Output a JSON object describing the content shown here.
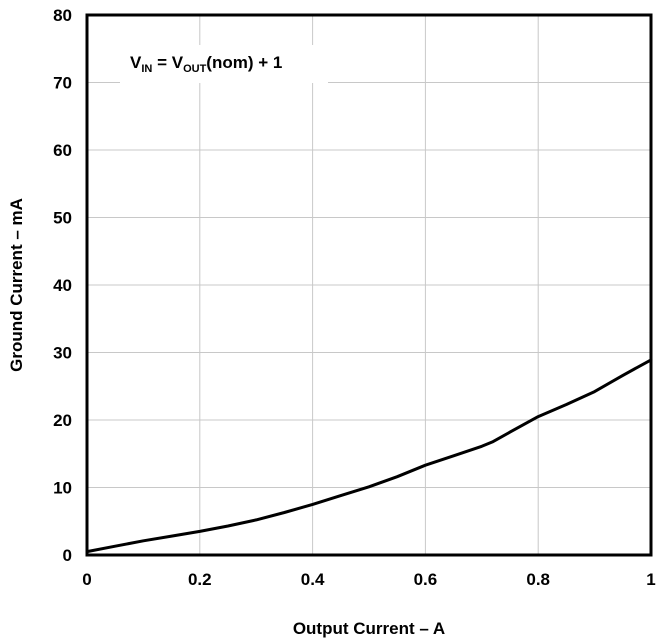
{
  "chart_data": {
    "type": "line",
    "title": "",
    "xlabel": "Output Current – A",
    "ylabel": "Ground Current – mA",
    "xlim": [
      0,
      1
    ],
    "ylim": [
      0,
      80
    ],
    "x_ticks": [
      0,
      0.2,
      0.4,
      0.6,
      0.8,
      1
    ],
    "x_tick_labels": [
      "0",
      "0.2",
      "0.4",
      "0.6",
      "0.8",
      "1"
    ],
    "y_ticks": [
      0,
      10,
      20,
      30,
      40,
      50,
      60,
      70,
      80
    ],
    "y_tick_labels": [
      "0",
      "10",
      "20",
      "30",
      "40",
      "50",
      "60",
      "70",
      "80"
    ],
    "grid": true,
    "legend": "none",
    "line_color": "#000000",
    "grid_color": "#c8c8c8",
    "annotation": {
      "v1": "V",
      "sub1": "IN",
      "mid": " = V",
      "sub2": "OUT",
      "tail": "(nom) + 1"
    },
    "series": [
      {
        "x": [
          0,
          0.05,
          0.1,
          0.15,
          0.2,
          0.25,
          0.3,
          0.35,
          0.4,
          0.45,
          0.5,
          0.55,
          0.6,
          0.65,
          0.7,
          0.72,
          0.75,
          0.8,
          0.85,
          0.9,
          0.95,
          1.0
        ],
        "values": [
          0.5,
          1.3,
          2.1,
          2.8,
          3.5,
          4.3,
          5.2,
          6.3,
          7.5,
          8.8,
          10.1,
          11.6,
          13.3,
          14.7,
          16.1,
          16.8,
          18.2,
          20.5,
          22.3,
          24.2,
          26.6,
          28.9
        ]
      }
    ]
  }
}
